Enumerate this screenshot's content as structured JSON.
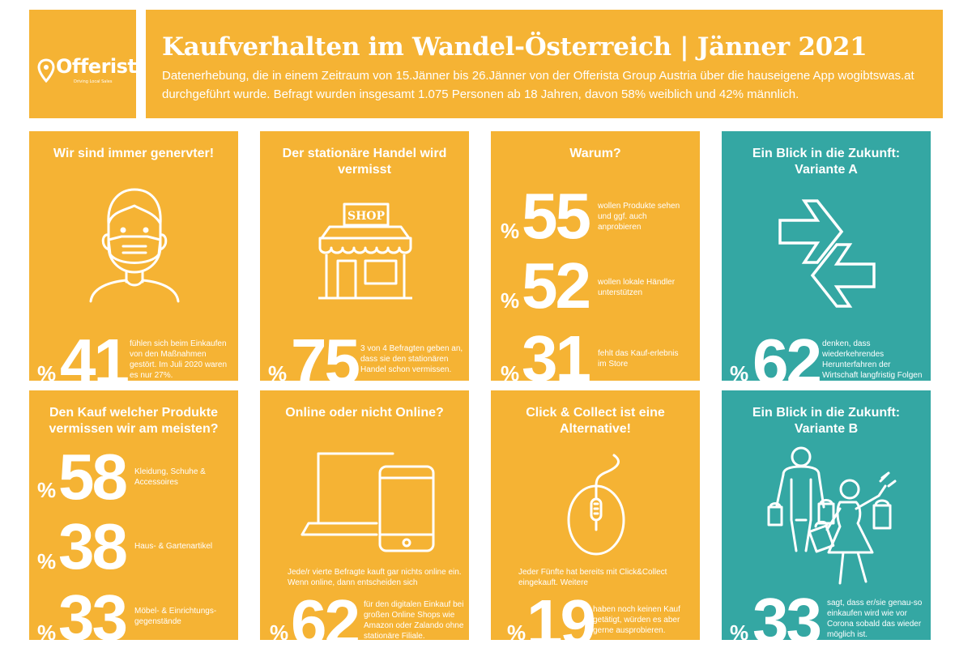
{
  "brand": {
    "name": "Offerista",
    "tagline": "Driving Local Sales"
  },
  "header": {
    "title": "Kaufverhalten im Wandel-Österreich | Jänner 2021",
    "description": "Datenerhebung, die in einem Zeitraum von 15.Jänner bis 26.Jänner von der Offerista Group Austria über die hauseigene App wogibtswas.at durchgeführt wurde. Befragt wurden insgesamt 1.075 Personen ab 18 Jahren, davon 58% weiblich und 42% männlich."
  },
  "colors": {
    "orange": "#f5b334",
    "teal": "#34a7a3",
    "text": "#ffffff"
  },
  "pct_symbol": "%",
  "cards": [
    {
      "title": "Wir sind immer genervter!",
      "icon": "masked-face-icon",
      "stat": "41",
      "text": "fühlen sich beim Einkaufen von den Maßnahmen gestört. Im Juli 2020 waren es nur 27%."
    },
    {
      "title": "Der stationäre Handel wird vermisst",
      "icon": "shop-icon",
      "icon_label": "SHOP",
      "stat": "75",
      "text": "3 von 4 Befragten geben an, dass sie den stationären Handel schon vermissen."
    },
    {
      "title": "Warum?",
      "stats": [
        {
          "value": "55",
          "text": "wollen Produkte sehen und ggf. auch anprobieren"
        },
        {
          "value": "52",
          "text": "wollen lokale Händler unterstützen"
        },
        {
          "value": "31",
          "text": "fehlt das Kauf-erlebnis im Store"
        }
      ]
    },
    {
      "title": "Ein Blick in die Zukunft: Variante A",
      "icon": "exchange-arrows-icon",
      "stat": "62",
      "text": "denken, dass wiederkehrendes Herunterfahren der Wirtschaft langfristig Folgen auf ihr Kauf-verhalten haben wird."
    },
    {
      "title": "Den Kauf welcher Produkte vermissen wir am meisten?",
      "stats": [
        {
          "value": "58",
          "text": "Kleidung, Schuhe & Accessoires"
        },
        {
          "value": "38",
          "text": "Haus- & Gartenartikel"
        },
        {
          "value": "33",
          "text": "Möbel- & Einrichtungs-gegenstände"
        }
      ]
    },
    {
      "title": "Online oder nicht Online?",
      "icon": "laptop-phone-icon",
      "intro": "Jede/r vierte Befragte kauft gar nichts online ein. Wenn online, dann entscheiden sich",
      "stat": "62",
      "text": "für den digitalen Einkauf bei großen Online Shops wie Amazon oder Zalando ohne stationäre Filiale."
    },
    {
      "title": "Click & Collect ist eine Alternative!",
      "icon": "mouse-icon",
      "intro": "Jeder Fünfte hat bereits mit Click&Collect eingekauft. Weitere",
      "stat": "19",
      "text": "haben noch keinen Kauf getätigt, würden es aber gerne ausprobieren."
    },
    {
      "title": "Ein Blick in die Zukunft: Variante B",
      "icon": "shoppers-icon",
      "stat": "33",
      "text": "sagt, dass er/sie genau-so einkaufen wird wie vor Corona sobald das wieder möglich ist."
    }
  ]
}
